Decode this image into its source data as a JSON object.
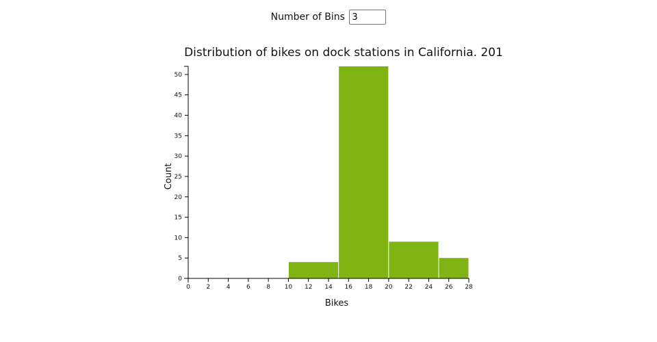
{
  "controls": {
    "bins_label": "Number of Bins",
    "bins_value": "3"
  },
  "chart_data": {
    "type": "bar",
    "title": "Distribution of bikes on dock stations in California. 201",
    "xlabel": "Bikes",
    "ylabel": "Count",
    "xlim": [
      0,
      28
    ],
    "ylim": [
      0,
      52
    ],
    "x_ticks": [
      0,
      2,
      4,
      6,
      8,
      10,
      12,
      14,
      16,
      18,
      20,
      22,
      24,
      26,
      28
    ],
    "y_ticks": [
      0,
      5,
      10,
      15,
      20,
      25,
      30,
      35,
      40,
      45,
      50
    ],
    "bins": [
      {
        "x0": 10,
        "x1": 15,
        "count": 4
      },
      {
        "x0": 15,
        "x1": 20,
        "count": 52
      },
      {
        "x0": 20,
        "x1": 25,
        "count": 9
      },
      {
        "x0": 25,
        "x1": 28,
        "count": 5
      }
    ],
    "bar_color": "#7fb414",
    "grid": false,
    "legend": "none"
  }
}
